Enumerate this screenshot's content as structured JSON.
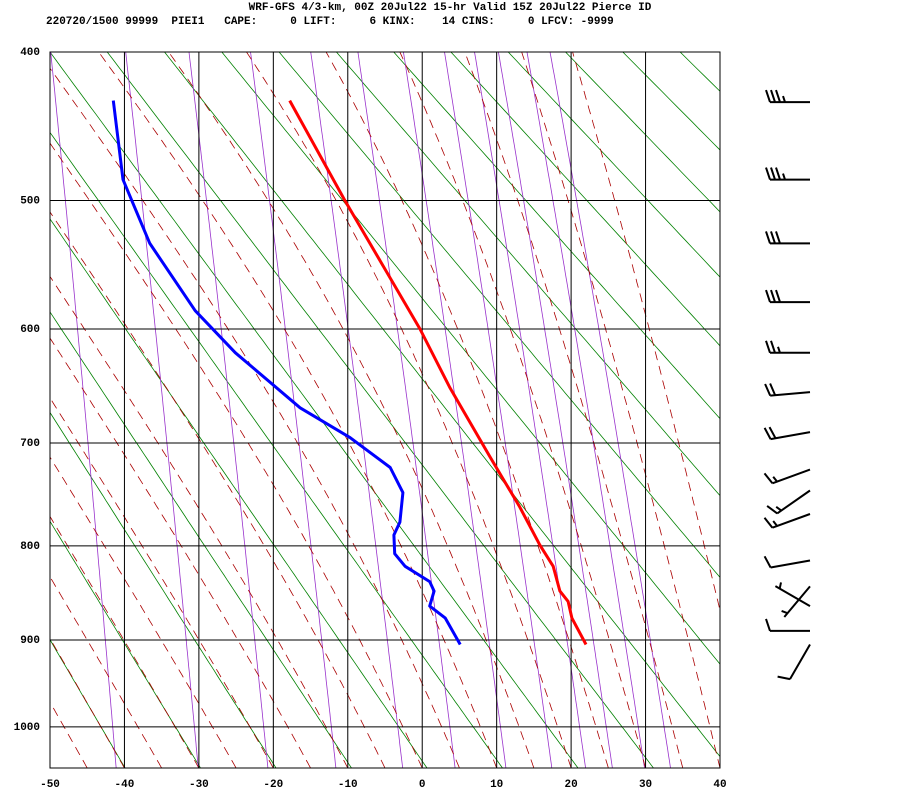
{
  "chart_data": {
    "type": "stuve",
    "title": "WRF-GFS 4/3-km, 00Z 20Jul22 15-hr Valid 15Z 20Jul22 Pierce ID",
    "subtitle": "220720/1500 99999  PIEI1   CAPE:     0 LIFT:     6 KINX:    14 CINS:     0 LFCV: -9999",
    "xlim": [
      -50,
      40
    ],
    "xticks": [
      -50,
      -40,
      -30,
      -20,
      -10,
      0,
      10,
      20,
      30,
      40
    ],
    "ylim": [
      400,
      1050
    ],
    "yticks": [
      400,
      500,
      600,
      700,
      800,
      900,
      1000
    ],
    "grid": true,
    "series": [
      {
        "color": "#ff0000",
        "x": [
          -17.8,
          -10.4,
          -0.3,
          3.7,
          9.1,
          13.1,
          15.8,
          17.6,
          18.5,
          19.6,
          20.1,
          22.0
        ],
        "values": [
          431,
          500,
          600,
          650,
          713,
          761,
          799,
          821,
          847,
          858,
          876,
          905
        ]
      },
      {
        "color": "#0000ff",
        "x": [
          -41.5,
          -40.2,
          -36.6,
          -30.5,
          -25.1,
          -16.4,
          -9.7,
          -4.3,
          -2.6,
          -3.0,
          -3.8,
          -3.7,
          -2.3,
          1.0,
          1.6,
          1.0,
          3.1,
          5.1
        ],
        "values": [
          431,
          485,
          532,
          585,
          620,
          668,
          695,
          723,
          747,
          776,
          789,
          808,
          821,
          837,
          847,
          863,
          876,
          905
        ]
      }
    ],
    "winds": {
      "pressure": [
        432,
        485,
        532,
        578,
        620,
        654,
        690,
        725,
        745,
        768,
        815,
        842,
        863,
        890,
        905
      ],
      "direction": [
        270,
        270,
        270,
        270,
        270,
        265,
        260,
        250,
        235,
        250,
        260,
        220,
        300,
        270,
        210
      ],
      "speed": [
        35,
        35,
        30,
        30,
        25,
        20,
        20,
        15,
        15,
        15,
        10,
        5,
        5,
        10,
        10
      ],
      "color": "#000000"
    }
  }
}
